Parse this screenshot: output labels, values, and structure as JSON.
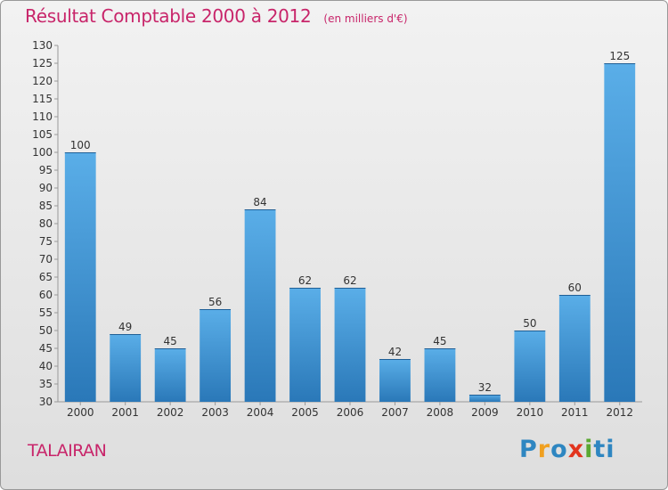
{
  "chart_data": {
    "type": "bar",
    "title": "Résultat Comptable 2000 à 2012",
    "subtitle": "(en milliers d'€)",
    "categories": [
      "2000",
      "2001",
      "2002",
      "2003",
      "2004",
      "2005",
      "2006",
      "2007",
      "2008",
      "2009",
      "2010",
      "2011",
      "2012"
    ],
    "values": [
      100,
      49,
      45,
      56,
      84,
      62,
      62,
      42,
      45,
      32,
      50,
      60,
      125
    ],
    "xlabel": "",
    "ylabel": "",
    "ylim": [
      30,
      130
    ],
    "yticks": [
      30,
      35,
      40,
      45,
      50,
      55,
      60,
      65,
      70,
      75,
      80,
      85,
      90,
      95,
      100,
      105,
      110,
      115,
      120,
      125,
      130
    ],
    "grid": false,
    "legend": "none",
    "bar_color_top": "#5aaee8",
    "bar_color_bottom": "#2a78b8",
    "axis_color": "#999999"
  },
  "footer": {
    "commune": "TALAIRAN",
    "brand_letters": [
      "P",
      "r",
      "o",
      "x",
      "i",
      "ti"
    ]
  },
  "theme": {
    "accent": "#c8256a"
  }
}
